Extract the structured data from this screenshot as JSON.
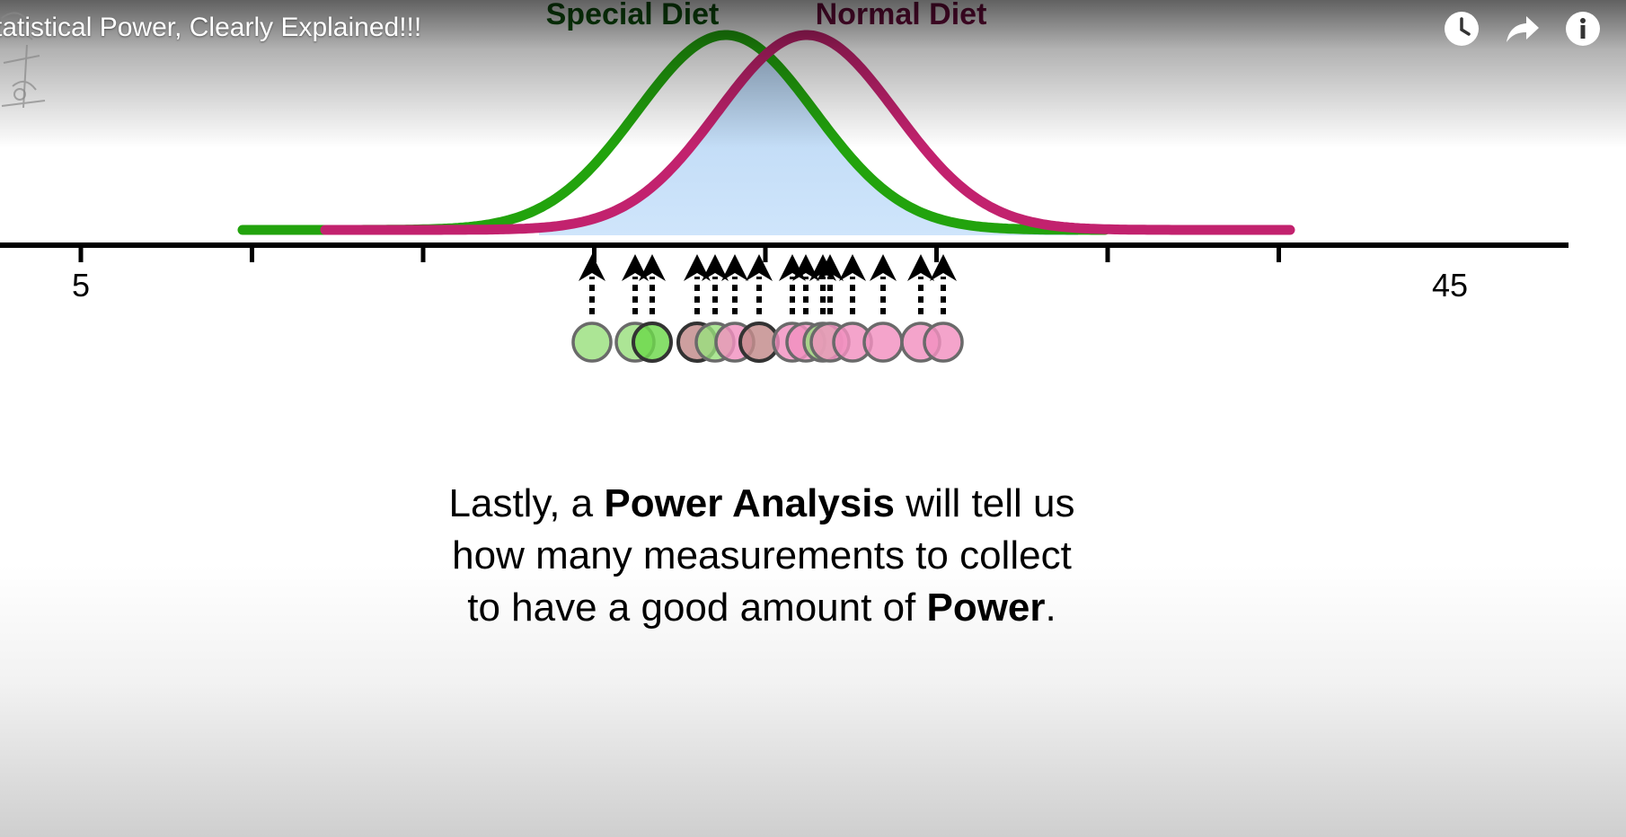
{
  "player": {
    "title": "tatistical Power, Clearly Explained!!!",
    "controls": [
      {
        "name": "watch-later-button",
        "icon": "clock-icon"
      },
      {
        "name": "share-button",
        "icon": "share-arrow-icon"
      },
      {
        "name": "info-button",
        "icon": "info-icon"
      }
    ]
  },
  "figure": {
    "special_label": "Special Diet",
    "normal_label": "Normal Diet",
    "colors": {
      "special": "#22a30d",
      "special_label": "#0d520d",
      "normal": "#c2226e",
      "normal_label": "#6e0b3e",
      "overlap": "#cfe5fb",
      "green_dot": "#9adf7e",
      "pink_dot": "#f190c0",
      "mixed_dot": "#c28a8a"
    },
    "axis": {
      "tick_labels": [
        {
          "value": 5,
          "text": "5"
        },
        {
          "value": 45,
          "text": "45"
        }
      ]
    }
  },
  "caption": {
    "line1_pre": "Lastly, a ",
    "line1_bold": "Power Analysis",
    "line1_post": " will tell us",
    "line2": "how many measurements to collect",
    "line3_pre": "to have a good amount of ",
    "line3_bold": "Power",
    "line3_post": "."
  }
}
